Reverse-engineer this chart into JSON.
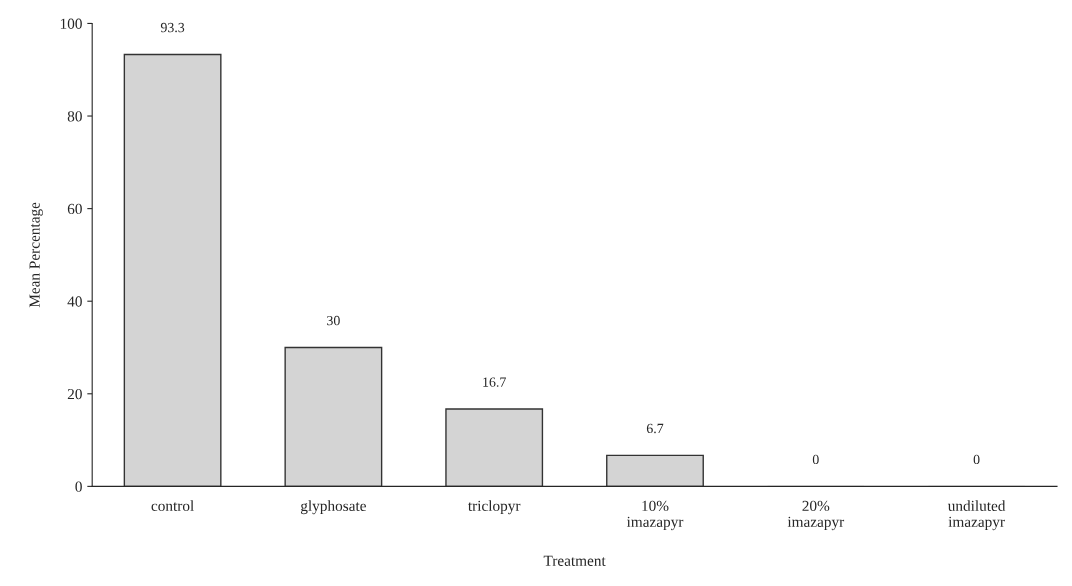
{
  "chart_data": {
    "type": "bar",
    "xlabel": "Treatment",
    "ylabel": "Mean Percentage",
    "categories": [
      "control",
      "glyphosate",
      "triclopyr",
      "10%\nimazapyr",
      "20%\nimazapyr",
      "undiluted\nimazapyr"
    ],
    "values": [
      93.3,
      30,
      16.7,
      6.7,
      0,
      0
    ],
    "color": "#d4d4d4",
    "ylim": [
      0,
      100
    ],
    "yticks": [
      0,
      20,
      40,
      60,
      80,
      100
    ],
    "data_labels": true,
    "grid": false,
    "legend": false
  }
}
